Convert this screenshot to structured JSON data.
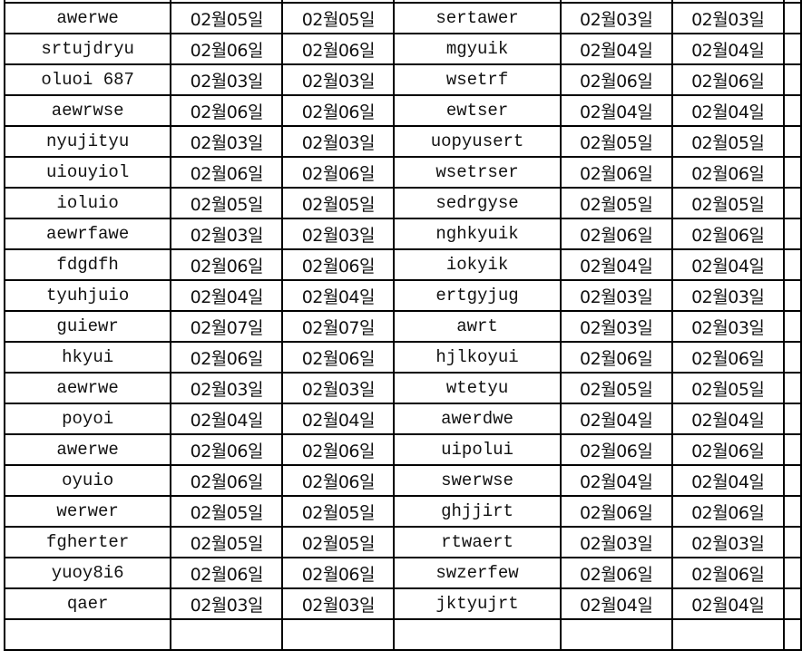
{
  "sheet": {
    "rows": [
      [
        "awerwe",
        "02월05일",
        "02월05일",
        "sertawer",
        "02월03일",
        "02월03일"
      ],
      [
        "srtujdryu",
        "02월06일",
        "02월06일",
        "mgyuik",
        "02월04일",
        "02월04일"
      ],
      [
        "oluoi 687",
        "02월03일",
        "02월03일",
        "wsetrf",
        "02월06일",
        "02월06일"
      ],
      [
        "aewrwse",
        "02월06일",
        "02월06일",
        "ewtser",
        "02월04일",
        "02월04일"
      ],
      [
        "nyujityu",
        "02월03일",
        "02월03일",
        "uopyusert",
        "02월05일",
        "02월05일"
      ],
      [
        "uiouyiol",
        "02월06일",
        "02월06일",
        "wsetrser",
        "02월06일",
        "02월06일"
      ],
      [
        "ioluio",
        "02월05일",
        "02월05일",
        "sedrgyse",
        "02월05일",
        "02월05일"
      ],
      [
        "aewrfawe",
        "02월03일",
        "02월03일",
        "nghkyuik",
        "02월06일",
        "02월06일"
      ],
      [
        "fdgdfh",
        "02월06일",
        "02월06일",
        "iokyik",
        "02월04일",
        "02월04일"
      ],
      [
        "tyuhjuio",
        "02월04일",
        "02월04일",
        "ertgyjug",
        "02월03일",
        "02월03일"
      ],
      [
        "guiewr",
        "02월07일",
        "02월07일",
        "awrt",
        "02월03일",
        "02월03일"
      ],
      [
        "hkyui",
        "02월06일",
        "02월06일",
        "hjlkoyui",
        "02월06일",
        "02월06일"
      ],
      [
        "aewrwe",
        "02월03일",
        "02월03일",
        "wtetyu",
        "02월05일",
        "02월05일"
      ],
      [
        "poyoi",
        "02월04일",
        "02월04일",
        "awerdwe",
        "02월04일",
        "02월04일"
      ],
      [
        "awerwe",
        "02월06일",
        "02월06일",
        "uipolui",
        "02월06일",
        "02월06일"
      ],
      [
        "oyuio",
        "02월06일",
        "02월06일",
        "swerwse",
        "02월04일",
        "02월04일"
      ],
      [
        "werwer",
        "02월05일",
        "02월05일",
        "ghjjirt",
        "02월06일",
        "02월06일"
      ],
      [
        "fgherter",
        "02월05일",
        "02월05일",
        "rtwaert",
        "02월03일",
        "02월03일"
      ],
      [
        "yuoy8i6",
        "02월06일",
        "02월06일",
        "swzerfew",
        "02월06일",
        "02월06일"
      ],
      [
        "qaer",
        "02월03일",
        "02월03일",
        "jktyujrt",
        "02월04일",
        "02월04일"
      ]
    ]
  }
}
